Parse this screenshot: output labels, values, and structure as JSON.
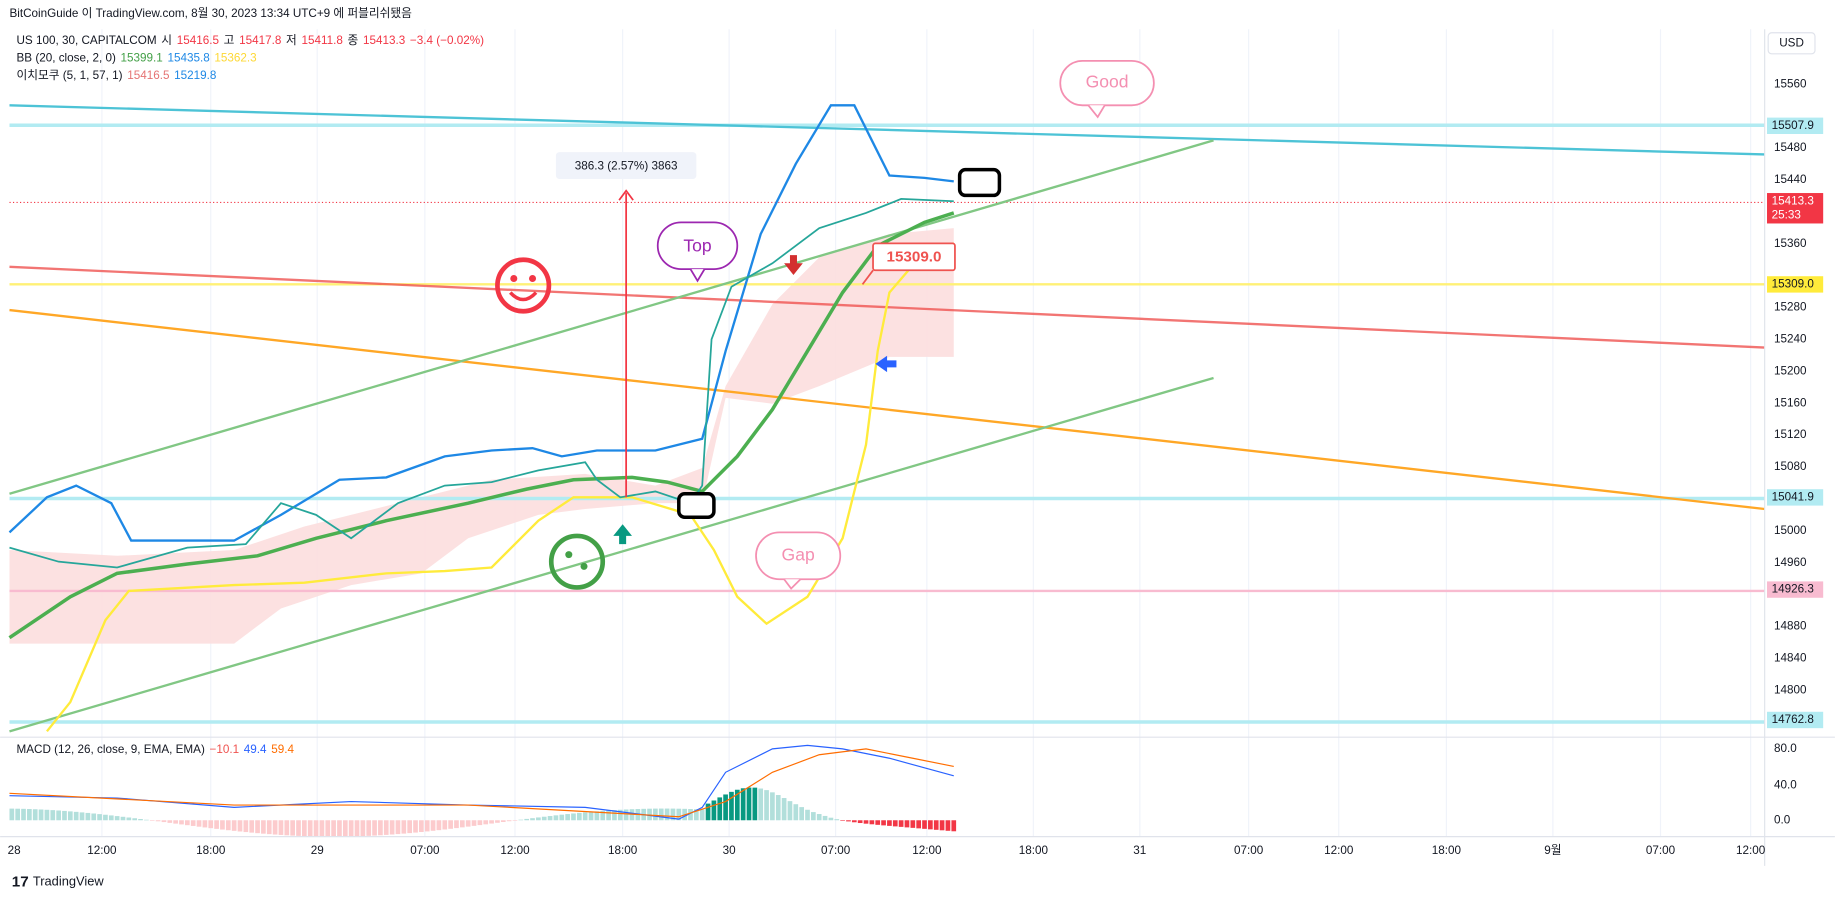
{
  "header": {
    "attribution": "BitCoinGuide 이 TradingView.com, 8월 30, 2023 13:34 UTC+9 에 퍼블리쉬됐음",
    "currency": "USD"
  },
  "legend": {
    "symbol": "US 100, 30, CAPITALCOM",
    "ohlc": [
      {
        "label": "시",
        "value": "15416.5"
      },
      {
        "label": "고",
        "value": "15417.8"
      },
      {
        "label": "저",
        "value": "15411.8"
      },
      {
        "label": "종",
        "value": "15413.3"
      }
    ],
    "change": "−3.4 (−0.02%)",
    "bb": {
      "name": "BB (20, close, 2, 0)",
      "values": [
        "15399.1",
        "15435.8",
        "15362.3"
      ],
      "colors": [
        "#43a047",
        "#1e88e5",
        "#fdd835"
      ]
    },
    "ichimoku": {
      "name": "이치모쿠 (5, 1, 57, 1)",
      "values": [
        "15416.5",
        "15219.8"
      ],
      "colors": [
        "#e57373",
        "#1e88e5"
      ]
    },
    "macd": {
      "name": "MACD (12, 26, close, 9, EMA, EMA)",
      "values": [
        "−10.1",
        "49.4",
        "59.4"
      ],
      "colors": [
        "#ef5350",
        "#2962ff",
        "#ff6d00"
      ]
    }
  },
  "price_axis": [
    "15560",
    "15480",
    "15440",
    "15360",
    "15280",
    "15240",
    "15200",
    "15160",
    "15120",
    "15080",
    "15000",
    "14960",
    "14880",
    "14840",
    "14800"
  ],
  "price_tags": [
    {
      "label": "15507.9",
      "color": "#b2ebf2"
    },
    {
      "label": "15413.3",
      "sub": "25:33",
      "color": "#f23645"
    },
    {
      "label": "15309.0",
      "color": "#ffeb3b"
    },
    {
      "label": "15041.9",
      "color": "#b2ebf2"
    },
    {
      "label": "14926.3",
      "color": "#f8bbd0"
    },
    {
      "label": "14762.8",
      "color": "#b2ebf2"
    }
  ],
  "macd_axis": [
    "80.0",
    "40.0",
    "0.0"
  ],
  "time_axis": [
    "28",
    "12:00",
    "18:00",
    "29",
    "07:00",
    "12:00",
    "18:00",
    "30",
    "07:00",
    "12:00",
    "18:00",
    "31",
    "07:00",
    "12:00",
    "18:00",
    "9월",
    "07:00",
    "12:00"
  ],
  "annotations": {
    "measure": "386.3 (2.57%) 3863",
    "top": "Top",
    "good": "Good",
    "gap": "Gap",
    "level": "15309.0"
  },
  "footer": "TradingView"
}
